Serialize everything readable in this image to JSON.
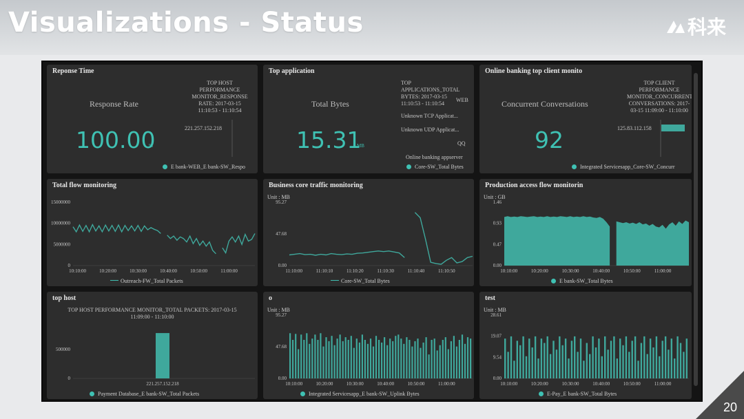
{
  "slide": {
    "title": "Visualizations - Status",
    "logo_text": "科来",
    "page_number": "20"
  },
  "panels": {
    "p1": {
      "title": "Reponse Time",
      "label": "Response Rate",
      "value": "100.00",
      "unit": "%",
      "side_title": "TOP HOST\nPERFORMANCE\nMONITOR_RESPONSE\nRATE: 2017-03-15\n11:10:53 - 11:10:54",
      "side_item": "221.257.152.218",
      "legend": "E bank-WEB_E bank-SW_Respo"
    },
    "p2": {
      "title": "Top application",
      "label": "Total Bytes",
      "value": "15.31",
      "unit": "MB",
      "side_title": "TOP\nAPPLICATIONS_TOTAL\nBYTES: 2017-03-15\n11:10:53 - 11:10:54",
      "side_items": [
        "WEB",
        "Unknown TCP Applicat...",
        "Unknown UDP Applicat...",
        "QQ",
        "Online banking appserver"
      ],
      "legend": "Core-SW_Total Bytes"
    },
    "p3": {
      "title": "Online banking top client monito",
      "label": "Concurrent Conversations",
      "value": "92",
      "side_title": "TOP CLIENT\nPERFORMANCE\nMONITOR_CONCURRENT\nCONVERSATIONS: 2017-\n03-15 11:09:00 - 11:10:00",
      "side_item": "125.83.112.158",
      "legend": "Integrated Servicesapp_Core-SW_Concurr"
    },
    "p4": {
      "title": "Total flow monitoring",
      "legend": "Outreach-FW_Total Packets"
    },
    "p5": {
      "title": "Business core traffic monitoring",
      "unit": "Unit : MB",
      "legend": "Core-SW_Total Bytes"
    },
    "p6": {
      "title": "Production access flow monitorin",
      "unit": "Unit : GB",
      "legend": "E bank-SW_Total Bytes"
    },
    "p7": {
      "title": "top host",
      "subtitle": "TOP HOST PERFORMANCE MONITOR_TOTAL PACKETS: 2017-03-15",
      "subtitle2": "11:09:00 - 11:10:00",
      "legend": "Payment Database_E bank-SW_Total Packets"
    },
    "p8": {
      "title": "o",
      "unit": "Unit : MB",
      "legend": "Integrated Servicesapp_E bank-SW_Uplink Bytes"
    },
    "p9": {
      "title": "test",
      "unit": "Unit : MB",
      "legend": "E-Pay_E bank-SW_Total Bytes"
    }
  },
  "chart_data": [
    {
      "type": "bar",
      "id": "top-host-response",
      "categories": [
        "221.257.152.218"
      ],
      "values": [
        100
      ],
      "orientation": "horizontal"
    },
    {
      "type": "bar",
      "id": "top-client-conversations",
      "categories": [
        "125.83.112.158"
      ],
      "values": [
        92
      ],
      "orientation": "horizontal"
    },
    {
      "type": "line",
      "id": "total-flow",
      "x_ticks": [
        "10:10:00",
        "10:20:00",
        "10:30:00",
        "10:40:00",
        "10:50:00",
        "11:00:00"
      ],
      "y_ticks": [
        "15000000",
        "10000000",
        "5000000",
        "0"
      ],
      "ylim": [
        0,
        15000000
      ],
      "series": [
        {
          "name": "Outreach-FW_Total Packets",
          "values": [
            9200000,
            8000000,
            9600000,
            8100000,
            9500000,
            8000000,
            9700000,
            8200000,
            9400000,
            8000000,
            9600000,
            8200000,
            9500000,
            8100000,
            9600000,
            8000000,
            9500000,
            8300000,
            9400000,
            8200000,
            9500000,
            8100000,
            9400000,
            8500000,
            9000000,
            8600000,
            8300000,
            7600000,
            null,
            7200000,
            6400000,
            7000000,
            6000000,
            6800000,
            6400000,
            5600000,
            7000000,
            5200000,
            6400000,
            4800000,
            5800000,
            4600000,
            5600000,
            3600000,
            2800000,
            null,
            4200000,
            3000000,
            5800000,
            6800000,
            5600000,
            7000000,
            5000000,
            7400000,
            5800000,
            6200000,
            7600000
          ]
        }
      ]
    },
    {
      "type": "line",
      "id": "business-core-traffic",
      "x_ticks": [
        "11:10:00",
        "11:10:10",
        "11:10:20",
        "11:10:30",
        "11:10:40",
        "11:10:50"
      ],
      "y_ticks": [
        "95.27",
        "47.68",
        "0.00"
      ],
      "ylim": [
        0,
        95.27
      ],
      "series": [
        {
          "name": "Core-SW_Total Bytes",
          "values": [
            16,
            17,
            18,
            16.5,
            17,
            15.5,
            17,
            16,
            18,
            17,
            16.5,
            17.5,
            17,
            18.5,
            19,
            20,
            21,
            22,
            21,
            22,
            20.5,
            19,
            12,
            null,
            80,
            72,
            40,
            5,
            3,
            2,
            8,
            12,
            4,
            6,
            12,
            14
          ]
        }
      ]
    },
    {
      "type": "area",
      "id": "production-access-flow",
      "x_ticks": [
        "10:10:00",
        "10:20:00",
        "10:30:00",
        "10:40:00",
        "10:50:00",
        "11:00:00"
      ],
      "y_ticks": [
        "1.46",
        "0.93",
        "0.47",
        "0.00"
      ],
      "ylim": [
        0,
        1.46
      ],
      "series": [
        {
          "name": "E bank-SW_Total Bytes",
          "values": [
            1.12,
            1.14,
            1.12,
            1.13,
            1.12,
            1.14,
            1.13,
            1.12,
            1.13,
            1.14,
            1.12,
            1.13,
            1.12,
            1.14,
            1.12,
            1.13,
            1.12,
            1.14,
            1.13,
            1.12,
            1.14,
            1.12,
            1.13,
            1.12,
            1.14,
            1.12,
            1.13,
            1.11,
            1.1,
            1.12,
            1.08,
            1.0,
            0.9,
            null,
            1.02,
            1.0,
            0.98,
            1.0,
            0.97,
            0.99,
            0.96,
            1.0,
            0.95,
            0.97,
            0.92,
            0.96,
            0.9,
            0.88,
            0.94,
            0.85,
            0.95,
            1.0,
            0.92,
            1.02,
            0.96,
            1.04,
            1.0
          ]
        }
      ]
    },
    {
      "type": "bar",
      "id": "top-host-packets",
      "categories": [
        "221.257.152.218"
      ],
      "values": [
        780000
      ],
      "y_ticks": [
        "500000",
        "0"
      ],
      "ylim": [
        0,
        900000
      ],
      "series": [
        {
          "name": "Payment Database_E bank-SW_Total Packets"
        }
      ]
    },
    {
      "type": "bar",
      "id": "uplink-bytes",
      "x_ticks": [
        "10:10:00",
        "10:20:00",
        "10:30:00",
        "10:40:00",
        "10:50:00",
        "11:00:00"
      ],
      "y_ticks": [
        "95.27",
        "47.68",
        "0.00"
      ],
      "ylim": [
        0,
        95.27
      ],
      "series": [
        {
          "name": "Integrated Servicesapp_E bank-SW_Uplink Bytes",
          "values": [
            68,
            58,
            67,
            44,
            66,
            58,
            68,
            52,
            60,
            66,
            58,
            68,
            48,
            62,
            56,
            64,
            50,
            60,
            66,
            56,
            62,
            58,
            64,
            46,
            60,
            54,
            66,
            58,
            52,
            60,
            48,
            64,
            58,
            54,
            62,
            50,
            60,
            56,
            64,
            66,
            60,
            52,
            62,
            58,
            48,
            56,
            60,
            46,
            54,
            62,
            36,
            58,
            60,
            42,
            50,
            58,
            62,
            44,
            56,
            64,
            48,
            58,
            66,
            52,
            62,
            60
          ]
        }
      ]
    },
    {
      "type": "bar",
      "id": "total-bytes",
      "x_ticks": [
        "10:10:00",
        "10:20:00",
        "10:30:00",
        "10:40:00",
        "10:50:00",
        "11:00:00"
      ],
      "y_ticks": [
        "28.61",
        "19.07",
        "9.54",
        "0.00"
      ],
      "ylim": [
        0,
        28.61
      ],
      "series": [
        {
          "name": "E-Pay_E bank-SW_Total Bytes",
          "values": [
            18,
            12,
            19,
            8,
            17,
            15,
            19,
            10,
            18,
            14,
            19,
            9,
            18,
            16,
            19,
            11,
            17,
            13,
            19,
            15,
            18,
            9,
            17,
            19,
            12,
            18,
            8,
            16,
            11,
            19,
            14,
            18,
            10,
            19,
            13,
            17,
            19,
            9,
            18,
            15,
            19,
            12,
            17,
            19,
            8,
            16,
            19,
            11,
            18,
            14,
            19,
            10,
            17,
            19,
            13,
            18,
            9,
            19,
            16,
            12,
            18
          ]
        }
      ]
    }
  ]
}
